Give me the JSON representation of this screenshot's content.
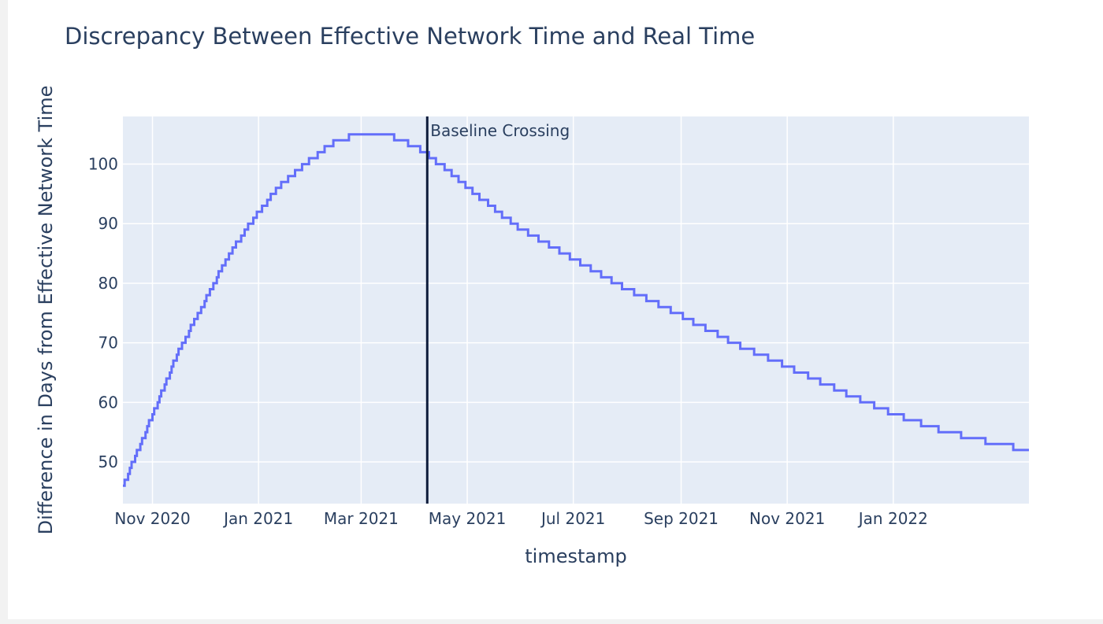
{
  "chart_data": {
    "type": "line",
    "line_shape": "step",
    "title": "Discrepancy Between Effective Network Time and Real Time",
    "xlabel": "timestamp",
    "ylabel": "Difference in Days from Effective Network Time",
    "x_range": [
      "2020-10-15",
      "2022-03-20"
    ],
    "ylim": [
      43,
      108
    ],
    "x_ticks": [
      {
        "date": "2020-11-01",
        "label": "Nov 2020"
      },
      {
        "date": "2021-01-01",
        "label": "Jan 2021"
      },
      {
        "date": "2021-03-01",
        "label": "Mar 2021"
      },
      {
        "date": "2021-05-01",
        "label": "May 2021"
      },
      {
        "date": "2021-07-01",
        "label": "Jul 2021"
      },
      {
        "date": "2021-09-01",
        "label": "Sep 2021"
      },
      {
        "date": "2021-11-01",
        "label": "Nov 2021"
      },
      {
        "date": "2022-01-01",
        "label": "Jan 2022"
      }
    ],
    "y_ticks": [
      50,
      60,
      70,
      80,
      90,
      100
    ],
    "grid": true,
    "line_color": "#636efa",
    "series": [
      {
        "x": [
          "2020-10-15",
          "2020-11-01",
          "2020-11-15",
          "2020-12-01",
          "2020-12-15",
          "2021-01-01",
          "2021-01-15",
          "2021-02-01",
          "2021-02-15",
          "2021-03-01",
          "2021-03-15",
          "2021-04-01",
          "2021-04-15",
          "2021-05-01",
          "2021-06-01",
          "2021-07-01",
          "2021-08-01",
          "2021-09-01",
          "2021-10-01",
          "2021-11-01",
          "2021-12-01",
          "2022-01-01",
          "2022-02-01",
          "2022-03-01",
          "2022-03-20"
        ],
        "y": [
          46,
          58,
          68,
          77,
          85,
          92,
          97,
          101,
          104,
          105,
          105,
          103,
          100,
          96,
          89,
          84,
          79,
          74.5,
          70,
          66,
          62,
          58,
          55,
          53,
          52
        ]
      }
    ],
    "annotations": [
      {
        "type": "vline",
        "x": "2021-04-08",
        "text": "Baseline Crossing",
        "color": "#0d1b3a"
      }
    ]
  }
}
